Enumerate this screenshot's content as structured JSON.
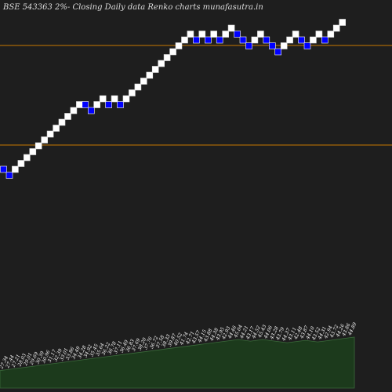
{
  "header": {
    "title": "BSE 543363 2%-  Closing Daily data  Renko  charts munafasutra.in"
  },
  "colors": {
    "background": "#1e1e1e",
    "up_brick": "#ffffff",
    "down_brick": "#0000ff",
    "level_line": "#c87800",
    "volume_fill": "#1c3a1c",
    "volume_line": "#3a6a3a"
  },
  "chart_data": {
    "type": "renko",
    "box_size_percent": 2,
    "y_unit_per_brick": 1,
    "bricks": [
      {
        "level": 0,
        "dir": "down"
      },
      {
        "level": -1,
        "dir": "down"
      },
      {
        "level": 0,
        "dir": "up"
      },
      {
        "level": 1,
        "dir": "up"
      },
      {
        "level": 2,
        "dir": "up"
      },
      {
        "level": 3,
        "dir": "up"
      },
      {
        "level": 4,
        "dir": "up"
      },
      {
        "level": 5,
        "dir": "up"
      },
      {
        "level": 6,
        "dir": "up"
      },
      {
        "level": 7,
        "dir": "up"
      },
      {
        "level": 8,
        "dir": "up"
      },
      {
        "level": 9,
        "dir": "up"
      },
      {
        "level": 10,
        "dir": "up"
      },
      {
        "level": 11,
        "dir": "up"
      },
      {
        "level": 11,
        "dir": "down"
      },
      {
        "level": 10,
        "dir": "down"
      },
      {
        "level": 11,
        "dir": "up"
      },
      {
        "level": 12,
        "dir": "up"
      },
      {
        "level": 11,
        "dir": "down"
      },
      {
        "level": 12,
        "dir": "up"
      },
      {
        "level": 11,
        "dir": "down"
      },
      {
        "level": 12,
        "dir": "up"
      },
      {
        "level": 13,
        "dir": "up"
      },
      {
        "level": 14,
        "dir": "up"
      },
      {
        "level": 15,
        "dir": "up"
      },
      {
        "level": 16,
        "dir": "up"
      },
      {
        "level": 17,
        "dir": "up"
      },
      {
        "level": 18,
        "dir": "up"
      },
      {
        "level": 19,
        "dir": "up"
      },
      {
        "level": 20,
        "dir": "up"
      },
      {
        "level": 21,
        "dir": "up"
      },
      {
        "level": 22,
        "dir": "up"
      },
      {
        "level": 23,
        "dir": "up"
      },
      {
        "level": 22,
        "dir": "down"
      },
      {
        "level": 23,
        "dir": "up"
      },
      {
        "level": 22,
        "dir": "down"
      },
      {
        "level": 23,
        "dir": "up"
      },
      {
        "level": 22,
        "dir": "down"
      },
      {
        "level": 23,
        "dir": "up"
      },
      {
        "level": 24,
        "dir": "up"
      },
      {
        "level": 23,
        "dir": "down"
      },
      {
        "level": 22,
        "dir": "down"
      },
      {
        "level": 21,
        "dir": "down"
      },
      {
        "level": 22,
        "dir": "up"
      },
      {
        "level": 23,
        "dir": "up"
      },
      {
        "level": 22,
        "dir": "down"
      },
      {
        "level": 21,
        "dir": "down"
      },
      {
        "level": 20,
        "dir": "down"
      },
      {
        "level": 21,
        "dir": "up"
      },
      {
        "level": 22,
        "dir": "up"
      },
      {
        "level": 23,
        "dir": "up"
      },
      {
        "level": 22,
        "dir": "down"
      },
      {
        "level": 21,
        "dir": "down"
      },
      {
        "level": 22,
        "dir": "up"
      },
      {
        "level": 23,
        "dir": "up"
      },
      {
        "level": 22,
        "dir": "down"
      },
      {
        "level": 23,
        "dir": "up"
      },
      {
        "level": 24,
        "dir": "up"
      },
      {
        "level": 25,
        "dir": "up"
      }
    ],
    "horizontal_lines": [
      23,
      7.5
    ],
    "ylim": [
      -16,
      27
    ],
    "volume_labels": [
      "27.34",
      "27.44",
      "27.21",
      "28.03",
      "29.01",
      "29.69",
      "30.39",
      "30.96",
      "31.17",
      "32.39",
      "33.01",
      "33.86",
      "34.49",
      "34.28",
      "34.92",
      "35.45",
      "35.64",
      "36.22",
      "36.78",
      "37.11",
      "36.49",
      "36.83",
      "37.69",
      "38.20",
      "37.76",
      "36.72",
      "37.58",
      "38.33",
      "39.87",
      "40.52",
      "41.74",
      "42.71",
      "43.57",
      "44.15",
      "43.88",
      "44.38",
      "43.95",
      "42.93",
      "44.46",
      "45.04",
      "44.21",
      "43.17",
      "44.52",
      "45.43",
      "44.06",
      "43.28",
      "43.79",
      "44.37",
      "43.11",
      "42.48",
      "43.87",
      "44.10",
      "43.52",
      "44.31",
      "42.94",
      "43.72",
      "44.26",
      "43.86",
      "44.89"
    ],
    "volume_values": [
      22,
      23,
      24,
      25,
      26,
      27,
      28,
      29,
      30,
      31,
      32,
      33,
      34,
      35,
      36,
      37,
      38,
      39,
      40,
      41,
      42,
      43,
      44,
      45,
      46,
      47,
      48,
      49,
      50,
      51,
      52,
      53,
      54,
      55,
      56,
      57,
      58,
      59,
      60,
      61,
      60,
      59,
      60,
      61,
      60,
      59,
      58,
      57,
      58,
      59,
      60,
      59,
      58,
      59,
      60,
      61,
      62,
      63,
      64
    ]
  }
}
